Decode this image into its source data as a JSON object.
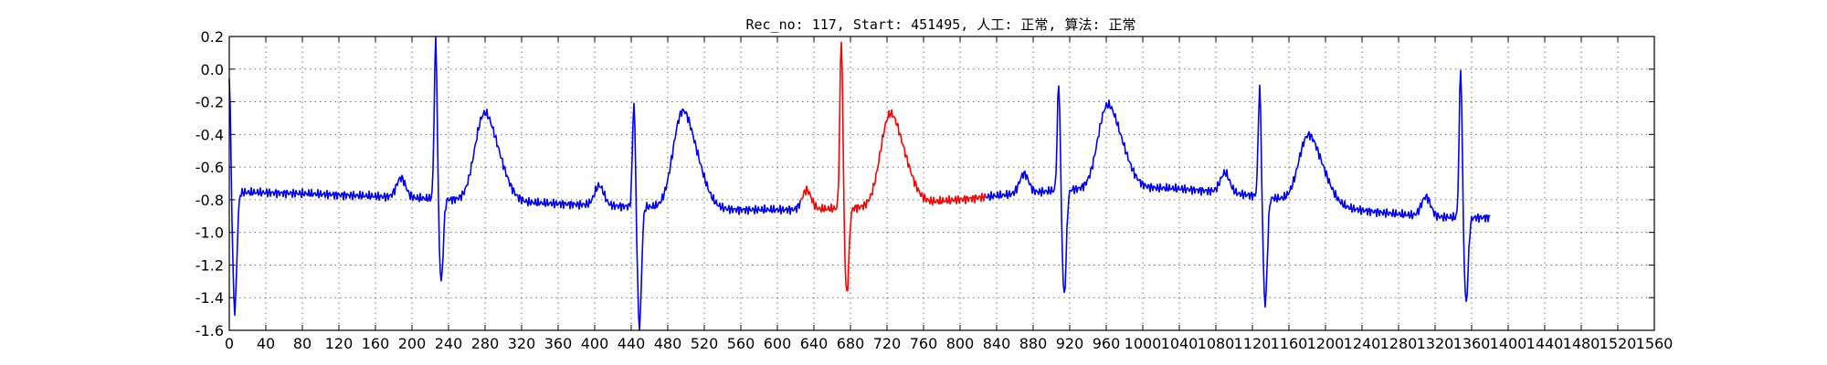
{
  "chart_data": {
    "type": "line",
    "title": "Rec_no: 117, Start: 451495, 人工: 正常, 算法: 正常",
    "xlabel": "",
    "ylabel": "",
    "xlim": [
      0,
      1560
    ],
    "ylim": [
      -1.6,
      0.2
    ],
    "grid": true,
    "x_ticks": [
      0,
      40,
      80,
      120,
      160,
      200,
      240,
      280,
      320,
      360,
      400,
      440,
      480,
      520,
      560,
      600,
      640,
      680,
      720,
      760,
      800,
      840,
      880,
      920,
      960,
      1000,
      1040,
      1080,
      1120,
      1160,
      1200,
      1240,
      1280,
      1320,
      1360,
      1400,
      1440,
      1480,
      1520,
      1560
    ],
    "x_tick_labels": [
      "0",
      "40",
      "80",
      "120",
      "160",
      "200",
      "240",
      "280",
      "320",
      "360",
      "400",
      "440",
      "480",
      "520",
      "560",
      "600",
      "640",
      "680",
      "720",
      "760",
      "800",
      "840",
      "880",
      "920",
      "960",
      "1000",
      "1040",
      "1080",
      "1120",
      "1160",
      "1200",
      "1240",
      "1280",
      "1320",
      "1360",
      "1400",
      "1440",
      "1480",
      "1520",
      "1560"
    ],
    "y_ticks": [
      0.2,
      0.0,
      -0.2,
      -0.4,
      -0.6,
      -0.8,
      -1.0,
      -1.2,
      -1.4,
      -1.6
    ],
    "y_tick_labels": [
      "0.2",
      "0.0",
      "-0.2",
      "-0.4",
      "-0.6",
      "-0.8",
      "-1.0",
      "-1.2",
      "-1.4",
      "-1.6"
    ],
    "x_data_max": 1380,
    "series": [
      {
        "color": "#0000ff",
        "segments": [
          [
            0,
            625
          ],
          [
            828,
            1380
          ]
        ]
      },
      {
        "color": "#ff0000",
        "segments": [
          [
            625,
            828
          ]
        ]
      }
    ],
    "beats": [
      {
        "r": 0,
        "amp": -0.05,
        "q": -1.48,
        "p": -1.5
      },
      {
        "r": 226,
        "amp": 0.2,
        "q": -1.3,
        "p": -0.19
      },
      {
        "r": 443,
        "amp": -0.19,
        "q": -1.58,
        "p": -0.17
      },
      {
        "r": 670,
        "amp": 0.2,
        "q": -1.38,
        "p": -0.22
      },
      {
        "r": 908,
        "amp": -0.07,
        "q": -1.39,
        "p": -0.17
      },
      {
        "r": 1128,
        "amp": -0.1,
        "q": -1.44,
        "p": -0.31
      },
      {
        "r": 1348,
        "amp": 0.02,
        "q": -1.43,
        "p": -0.86
      }
    ]
  }
}
